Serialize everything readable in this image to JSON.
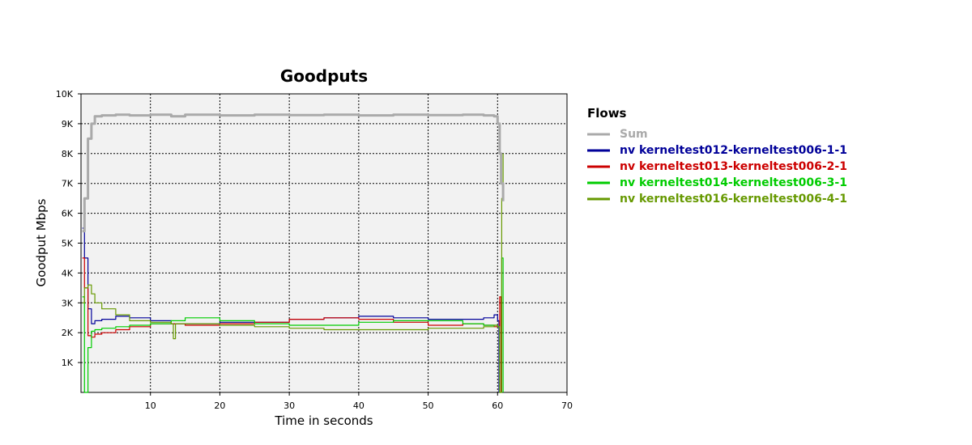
{
  "chart_data": {
    "type": "line",
    "title": "Goodputs",
    "xlabel": "Time in seconds",
    "ylabel": "Goodput Mbps",
    "xlim": [
      0,
      70
    ],
    "ylim": [
      0,
      10000
    ],
    "x_ticks": [
      10,
      20,
      30,
      40,
      50,
      60,
      70
    ],
    "x_tick_labels": [
      "10",
      "20",
      "30",
      "40",
      "50",
      "60",
      "70"
    ],
    "y_ticks": [
      1000,
      2000,
      3000,
      4000,
      5000,
      6000,
      7000,
      8000,
      9000,
      10000
    ],
    "y_tick_labels": [
      "1K",
      "2K",
      "3K",
      "4K",
      "5K",
      "6K",
      "7K",
      "8K",
      "9K",
      "10K"
    ],
    "grid": true,
    "legend_title": "Flows",
    "legend_position": "right",
    "series": [
      {
        "name": "Sum",
        "color": "#aaaaaa",
        "x": [
          0.2,
          0.5,
          1.0,
          1.5,
          2.0,
          3,
          5,
          7,
          10,
          13,
          15,
          20,
          25,
          30,
          35,
          40,
          45,
          50,
          55,
          58,
          59.5,
          60.0,
          60.3,
          60.5,
          60.8
        ],
        "y": [
          5400,
          6500,
          8500,
          9000,
          9250,
          9280,
          9300,
          9280,
          9300,
          9250,
          9300,
          9280,
          9300,
          9290,
          9300,
          9280,
          9300,
          9290,
          9300,
          9280,
          9250,
          9000,
          8000,
          7000,
          6400
        ]
      },
      {
        "name": "nv kerneltest012-kerneltest006-1-1",
        "color": "#000099",
        "x": [
          0.2,
          0.5,
          1.0,
          1.5,
          2,
          3,
          5,
          7,
          10,
          13,
          15,
          20,
          25,
          30,
          35,
          40,
          45,
          50,
          55,
          58,
          59.5,
          60.0,
          60.2
        ],
        "y": [
          5500,
          4500,
          2800,
          2300,
          2400,
          2450,
          2550,
          2500,
          2400,
          2300,
          2300,
          2350,
          2350,
          2450,
          2500,
          2550,
          2500,
          2450,
          2450,
          2500,
          2600,
          2400,
          0
        ]
      },
      {
        "name": "nv kerneltest013-kerneltest006-2-1",
        "color": "#cc0000",
        "x": [
          0.2,
          0.5,
          1.0,
          1.5,
          2,
          3,
          5,
          7,
          10,
          13,
          15,
          20,
          25,
          30,
          35,
          40,
          45,
          50,
          55,
          58,
          59.5,
          60.0,
          60.3,
          60.5
        ],
        "y": [
          4500,
          3500,
          1900,
          1850,
          1950,
          2000,
          2100,
          2200,
          2300,
          2300,
          2250,
          2300,
          2350,
          2450,
          2500,
          2450,
          2350,
          2250,
          2300,
          2250,
          2200,
          2200,
          3200,
          0
        ]
      },
      {
        "name": "nv kerneltest014-kerneltest006-3-1",
        "color": "#00cc00",
        "x": [
          0.2,
          0.5,
          1.0,
          1.5,
          2,
          3,
          5,
          7,
          10,
          13,
          15,
          20,
          25,
          30,
          35,
          40,
          45,
          50,
          55,
          58,
          59.5,
          60.0,
          60.3,
          60.6,
          60.8
        ],
        "y": [
          3200,
          0,
          1500,
          2050,
          2100,
          2150,
          2200,
          2250,
          2300,
          2400,
          2500,
          2400,
          2300,
          2250,
          2250,
          2350,
          2400,
          2400,
          2300,
          2250,
          2250,
          2200,
          0,
          4500,
          0
        ]
      },
      {
        "name": "nv kerneltest016-kerneltest006-4-1",
        "color": "#669900",
        "x": [
          0.2,
          0.5,
          1.0,
          1.5,
          2,
          3,
          5,
          7,
          10,
          13,
          13.3,
          13.6,
          15,
          20,
          25,
          30,
          35,
          40,
          45,
          50,
          55,
          58,
          59.5,
          60.0,
          60.3,
          60.6,
          60.8
        ],
        "y": [
          3000,
          3500,
          3600,
          3300,
          3000,
          2800,
          2600,
          2400,
          2350,
          2300,
          1800,
          2300,
          2300,
          2250,
          2200,
          2150,
          2100,
          2100,
          2100,
          2150,
          2150,
          2200,
          2250,
          2200,
          0,
          6500,
          8000
        ]
      }
    ]
  }
}
